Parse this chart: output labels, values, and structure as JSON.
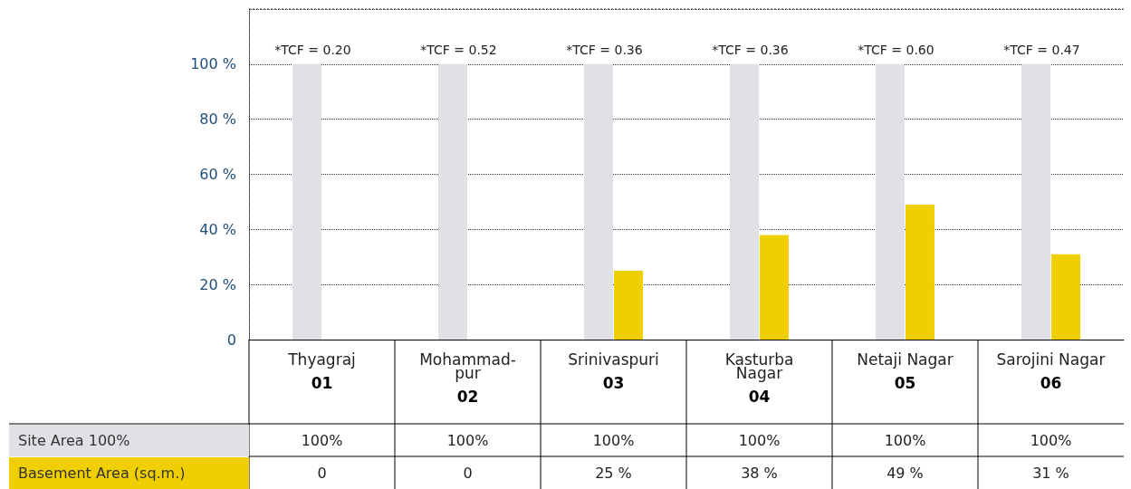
{
  "chart_data": {
    "type": "bar",
    "categories": [
      "Thyagraj\n01",
      "Mohammad-\npur\n02",
      "Srinivaspuri\n03",
      "Kasturba\nNagar\n04",
      "Netaji Nagar\n05",
      "Sarojini Nagar\n06"
    ],
    "series": [
      {
        "name": "Site Area 100%",
        "color": "#dfe1e4",
        "values": [
          100,
          100,
          100,
          100,
          100,
          100
        ],
        "value_labels": [
          "100%",
          "100%",
          "100%",
          "100%",
          "100%",
          "100%"
        ]
      },
      {
        "name": "Basement Area (sq.m.)",
        "color": "#f0cf00",
        "values": [
          0,
          0,
          25,
          38,
          49,
          31
        ],
        "value_labels": [
          "0",
          "0",
          "25 %",
          "38 %",
          "49 %",
          "31 %"
        ]
      }
    ],
    "ylim": [
      0,
      120
    ],
    "yticks": [
      0,
      {
        "value": 20,
        "label": "20 %"
      },
      {
        "value": 40,
        "label": "40 %"
      },
      {
        "value": 60,
        "label": "60 %"
      },
      {
        "value": 80,
        "label": "80 %"
      },
      {
        "value": 100,
        "label": "100 %"
      },
      {
        "value": 120,
        "label": null
      }
    ],
    "grid": "y",
    "annotations": [
      "*TCF = 0.20",
      "*TCF = 0.52",
      "*TCF = 0.36",
      "*TCF = 0.36",
      "*TCF = 0.60",
      "*TCF = 0.47"
    ]
  }
}
